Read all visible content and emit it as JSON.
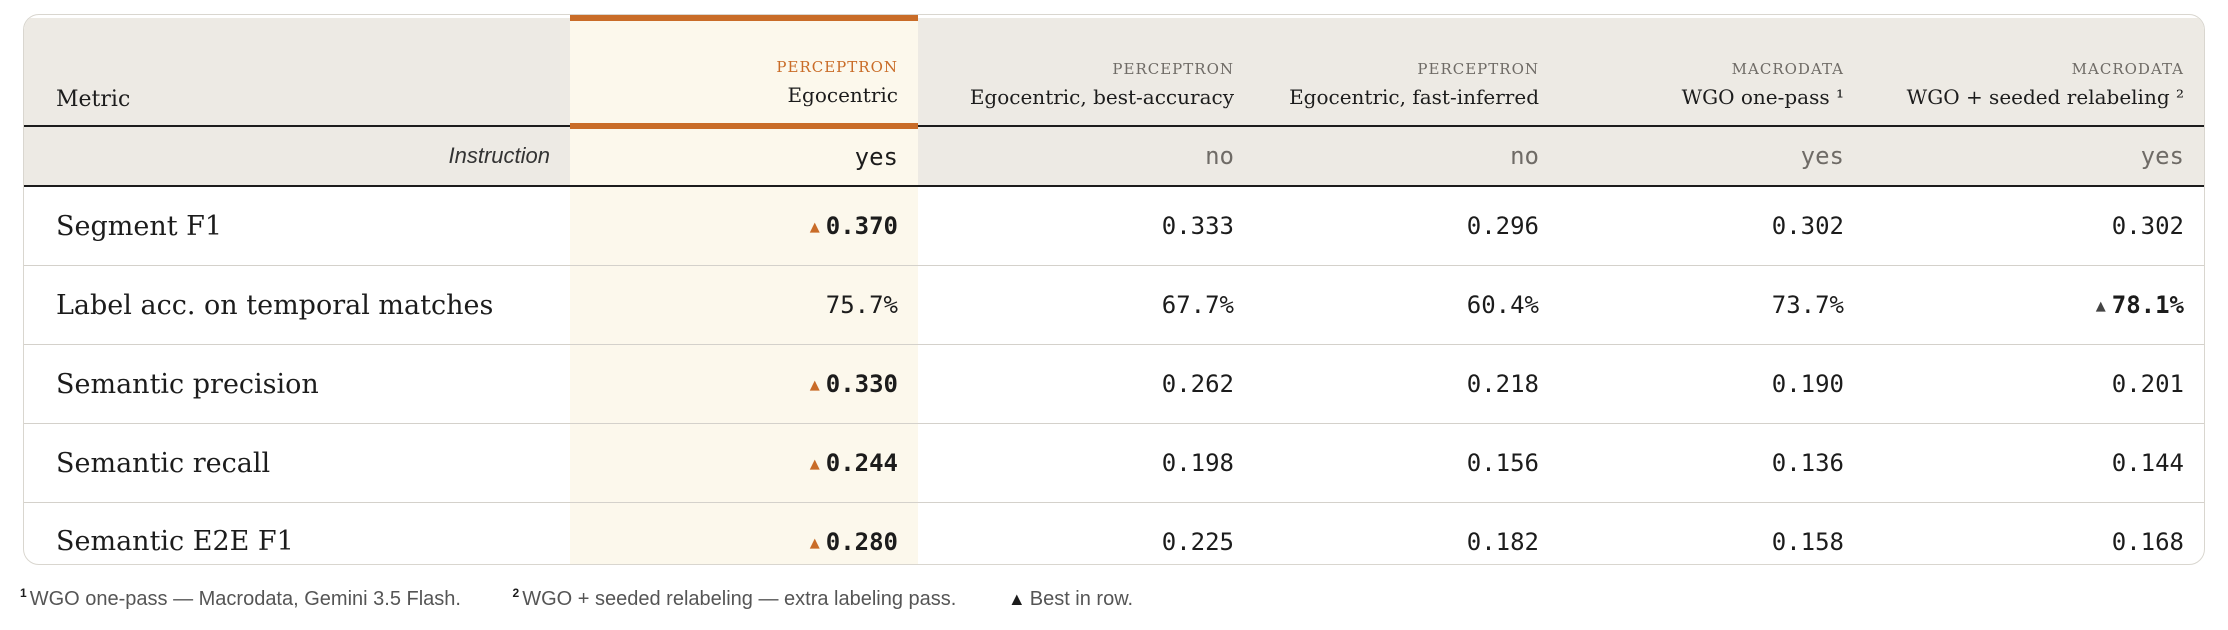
{
  "table": {
    "metric_header": "Metric",
    "instruction_label": "Instruction",
    "columns": [
      {
        "provider": "PERCEPTRON",
        "variant": "Egocentric",
        "instruction": "yes"
      },
      {
        "provider": "PERCEPTRON",
        "variant": "Egocentric, best-accuracy",
        "instruction": "no"
      },
      {
        "provider": "PERCEPTRON",
        "variant": "Egocentric, fast-inferred",
        "instruction": "no"
      },
      {
        "provider": "MACRODATA",
        "variant": "WGO one-pass ¹",
        "instruction": "yes"
      },
      {
        "provider": "MACRODATA",
        "variant": "WGO + seeded relabeling ²",
        "instruction": "yes"
      }
    ],
    "rows": [
      {
        "metric": "Segment F1",
        "values": [
          "0.370",
          "0.333",
          "0.296",
          "0.302",
          "0.302"
        ],
        "best_index": 0
      },
      {
        "metric": "Label acc. on temporal matches",
        "values": [
          "75.7%",
          "67.7%",
          "60.4%",
          "73.7%",
          "78.1%"
        ],
        "best_index": 4
      },
      {
        "metric": "Semantic precision",
        "values": [
          "0.330",
          "0.262",
          "0.218",
          "0.190",
          "0.201"
        ],
        "best_index": 0
      },
      {
        "metric": "Semantic recall",
        "values": [
          "0.244",
          "0.198",
          "0.156",
          "0.136",
          "0.144"
        ],
        "best_index": 0
      },
      {
        "metric": "Semantic E2E F1",
        "values": [
          "0.280",
          "0.225",
          "0.182",
          "0.158",
          "0.168"
        ],
        "best_index": 0
      }
    ],
    "best_marker": "▲",
    "highlight_color": "#c96c28",
    "highlight_bg": "#fcf8ec"
  },
  "footnotes": {
    "note1_mark": "1",
    "note1_text": "WGO one-pass — Macrodata, Gemini 3.5 Flash.",
    "note2_mark": "2",
    "note2_text": "WGO + seeded relabeling — extra labeling pass.",
    "note3_mark": "▲",
    "note3_text": "Best in row."
  }
}
